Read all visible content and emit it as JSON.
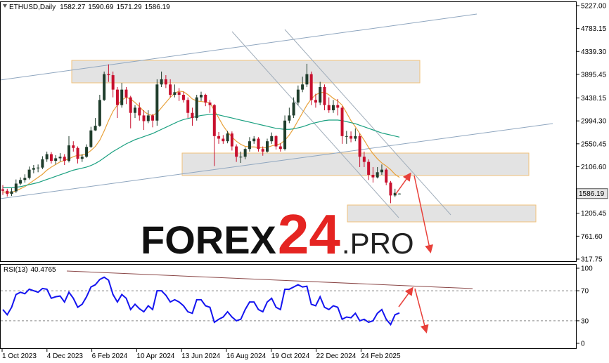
{
  "chart_data": [
    {
      "type": "candlestick",
      "symbol": "ETHUSD,Daily",
      "up_color": "#1f3d2c",
      "down_color": "#c8102e",
      "open": [
        1670,
        1640,
        1580,
        1630,
        1780,
        1850,
        1890,
        2050,
        2080,
        2090,
        2250,
        2350,
        2220,
        2270,
        2300,
        2220,
        2520,
        2470,
        2260,
        2300,
        2490,
        2810,
        2900,
        3400,
        3900,
        3880,
        3600,
        3300,
        3600,
        3450,
        3150,
        3250,
        3100,
        2990,
        3100,
        3000,
        3700,
        3800,
        3700,
        3500,
        3550,
        3500,
        3400,
        3150,
        3050,
        3450,
        3500,
        3350,
        3300,
        2700,
        2650,
        2600,
        2750,
        2500,
        2300,
        2300,
        2450,
        2600,
        2650,
        2450,
        2400,
        2600,
        2700,
        2500,
        2450,
        3000,
        3100,
        3350,
        3600,
        3700,
        3900,
        3400,
        3350,
        3650,
        3300,
        3200,
        3300,
        3250,
        2700,
        2700,
        2650,
        2700,
        2300,
        2200,
        1950,
        1900,
        2000,
        2050,
        1800,
        1550,
        1582.27
      ],
      "high": [
        1750,
        1680,
        1690,
        1860,
        1900,
        1960,
        2110,
        2140,
        2150,
        2310,
        2400,
        2390,
        2330,
        2370,
        2350,
        2700,
        2600,
        2500,
        2350,
        2540,
        2880,
        3050,
        3500,
        3950,
        4090,
        3950,
        3650,
        3730,
        3650,
        3480,
        3300,
        3350,
        3200,
        3200,
        3130,
        3800,
        3950,
        3880,
        3800,
        3700,
        3630,
        3560,
        3450,
        3250,
        3500,
        3560,
        3520,
        3400,
        3320,
        2780,
        2720,
        2800,
        2790,
        2540,
        2400,
        2480,
        2680,
        2700,
        2680,
        2500,
        2650,
        2770,
        2720,
        2560,
        3100,
        3250,
        3450,
        3680,
        3850,
        4100,
        3950,
        3520,
        3750,
        3700,
        3450,
        3400,
        3420,
        3280,
        2800,
        2790,
        2850,
        2750,
        2400,
        2250,
        2100,
        2100,
        2150,
        2080,
        1830,
        1680,
        1590.69
      ],
      "low": [
        1560,
        1530,
        1540,
        1600,
        1750,
        1800,
        1860,
        1980,
        2000,
        2060,
        2200,
        2170,
        2150,
        2210,
        2140,
        2190,
        2400,
        2170,
        2200,
        2280,
        2470,
        2800,
        2880,
        3380,
        3750,
        3450,
        3050,
        3250,
        3320,
        2850,
        3050,
        3000,
        2820,
        2950,
        2870,
        2900,
        3650,
        3630,
        3450,
        3450,
        3380,
        3350,
        3050,
        2900,
        3000,
        3380,
        3280,
        3150,
        2120,
        2550,
        2550,
        2560,
        2420,
        2200,
        2180,
        2250,
        2400,
        2550,
        2400,
        2320,
        2380,
        2550,
        2440,
        2400,
        2420,
        2950,
        3050,
        3300,
        3550,
        3650,
        3300,
        3250,
        3300,
        3200,
        3150,
        3150,
        3100,
        2550,
        2550,
        2580,
        2600,
        2100,
        2100,
        1850,
        1800,
        1880,
        1950,
        1750,
        1400,
        1520,
        1571.29
      ],
      "close": [
        1640,
        1580,
        1630,
        1780,
        1850,
        1890,
        2050,
        2080,
        2090,
        2250,
        2350,
        2220,
        2270,
        2300,
        2220,
        2520,
        2470,
        2260,
        2300,
        2490,
        2810,
        2900,
        3400,
        3900,
        3880,
        3600,
        3300,
        3600,
        3450,
        3150,
        3250,
        3100,
        2990,
        3100,
        3000,
        3700,
        3800,
        3700,
        3500,
        3550,
        3500,
        3400,
        3150,
        3050,
        3450,
        3500,
        3350,
        3300,
        2700,
        2650,
        2600,
        2750,
        2500,
        2300,
        2300,
        2450,
        2600,
        2650,
        2450,
        2400,
        2600,
        2700,
        2500,
        2450,
        3000,
        3100,
        3350,
        3600,
        3700,
        3900,
        3400,
        3350,
        3650,
        3300,
        3200,
        3300,
        3250,
        2700,
        2700,
        2650,
        2700,
        2300,
        2200,
        1950,
        1900,
        2000,
        2050,
        1800,
        1550,
        1600,
        1586.19
      ],
      "series": [
        {
          "color": "#e8a13a",
          "values": [
            1620,
            1610,
            1610,
            1640,
            1680,
            1720,
            1780,
            1840,
            1900,
            1960,
            2040,
            2100,
            2150,
            2200,
            2230,
            2260,
            2300,
            2330,
            2330,
            2360,
            2420,
            2500,
            2620,
            2800,
            3000,
            3180,
            3300,
            3400,
            3450,
            3420,
            3350,
            3270,
            3180,
            3120,
            3100,
            3150,
            3250,
            3350,
            3450,
            3530,
            3570,
            3560,
            3500,
            3420,
            3380,
            3370,
            3360,
            3340,
            3200,
            3050,
            2900,
            2780,
            2680,
            2600,
            2540,
            2500,
            2490,
            2490,
            2480,
            2470,
            2480,
            2510,
            2530,
            2550,
            2620,
            2720,
            2850,
            3000,
            3150,
            3300,
            3420,
            3500,
            3540,
            3550,
            3500,
            3430,
            3380,
            3300,
            3150,
            3000,
            2880,
            2750,
            2620,
            2480,
            2360,
            2260,
            2180,
            2120,
            2050,
            1960,
            1900
          ]
        },
        {
          "color": "#1aa080",
          "values": [
            1700,
            1700,
            1700,
            1710,
            1720,
            1740,
            1760,
            1780,
            1800,
            1830,
            1860,
            1890,
            1920,
            1950,
            1980,
            2010,
            2040,
            2060,
            2080,
            2100,
            2130,
            2170,
            2220,
            2280,
            2340,
            2400,
            2450,
            2500,
            2550,
            2590,
            2630,
            2660,
            2690,
            2720,
            2750,
            2790,
            2830,
            2870,
            2910,
            2950,
            2990,
            3020,
            3040,
            3060,
            3080,
            3100,
            3110,
            3120,
            3120,
            3110,
            3090,
            3070,
            3050,
            3030,
            3010,
            2990,
            2970,
            2950,
            2930,
            2910,
            2890,
            2870,
            2850,
            2840,
            2830,
            2830,
            2840,
            2860,
            2880,
            2910,
            2940,
            2960,
            2980,
            3000,
            3010,
            3010,
            3010,
            3000,
            2980,
            2960,
            2940,
            2910,
            2880,
            2850,
            2820,
            2790,
            2760,
            2740,
            2720,
            2700,
            2680
          ]
        }
      ],
      "ylim": [
        277,
        5308.6
      ],
      "yticks": [
        {
          "value": 5227,
          "label": "5227.00"
        },
        {
          "value": 4783.15,
          "label": "4783.15"
        },
        {
          "value": 4339.3,
          "label": "4339.30"
        },
        {
          "value": 3895.45,
          "label": "3895.45"
        },
        {
          "value": 3438.15,
          "label": "3438.15"
        },
        {
          "value": 2994.3,
          "label": "2994.30"
        },
        {
          "value": 2550.45,
          "label": "2550.45"
        },
        {
          "value": 2106.6,
          "label": "2106.60"
        },
        {
          "value": 1205.45,
          "label": "1205.45"
        },
        {
          "value": 761.6,
          "label": "761.60"
        },
        {
          "value": 317.75,
          "label": "317.75"
        }
      ],
      "x_labels": [
        "1 Oct 2023",
        "4 Dec 2023",
        "6 Feb 2024",
        "10 Apr 2024",
        "13 Jun 2024",
        "16 Aug 2024",
        "19 Oct 2024",
        "22 Dec 2024",
        "24 Feb 2025"
      ]
    },
    {
      "type": "line",
      "title": "RSI(13)",
      "series": [
        {
          "color": "#1414f0",
          "values": [
            45,
            38,
            48,
            65,
            68,
            66,
            72,
            70,
            68,
            73,
            72,
            60,
            62,
            63,
            55,
            68,
            60,
            48,
            52,
            62,
            75,
            78,
            85,
            88,
            84,
            65,
            55,
            65,
            60,
            45,
            52,
            46,
            42,
            50,
            45,
            70,
            70,
            64,
            55,
            58,
            55,
            50,
            42,
            40,
            58,
            58,
            50,
            48,
            28,
            32,
            35,
            42,
            35,
            30,
            32,
            45,
            55,
            55,
            45,
            42,
            55,
            60,
            48,
            45,
            72,
            72,
            75,
            78,
            75,
            76,
            52,
            50,
            62,
            48,
            45,
            50,
            48,
            32,
            35,
            34,
            40,
            30,
            32,
            28,
            30,
            40,
            45,
            32,
            25,
            38,
            40.4765
          ]
        }
      ],
      "ylim": [
        -7.5,
        105.6
      ],
      "yticks": [
        0,
        30,
        70,
        100
      ],
      "grid": true
    }
  ],
  "watermark": {
    "parts": [
      "FOREX",
      "24",
      ".PRO"
    ],
    "colors": [
      "#111111",
      "#e52421",
      "#222222"
    ]
  }
}
